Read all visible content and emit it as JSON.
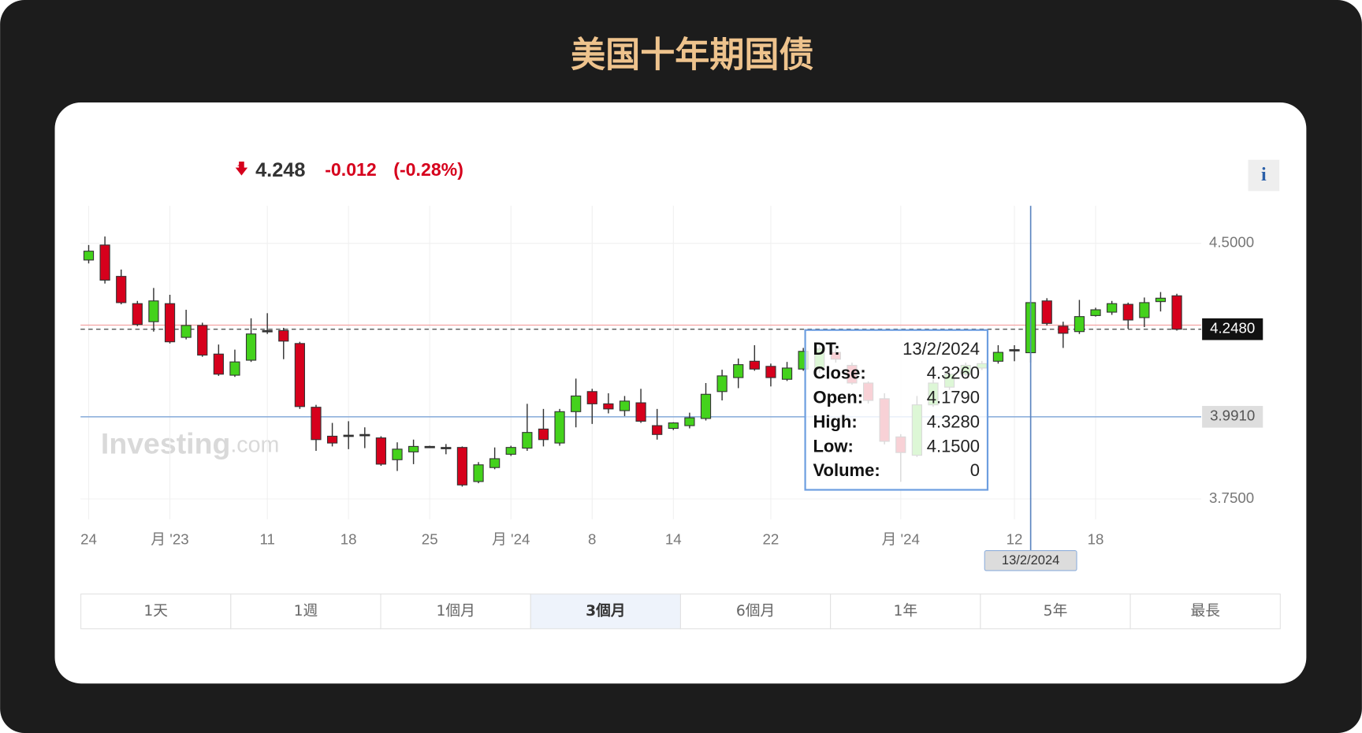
{
  "header": {
    "title": "美国十年期国债"
  },
  "quote": {
    "price": "4.248",
    "change": "-0.012",
    "change_pct": "(-0.28%)"
  },
  "info_icon": "i",
  "watermark": {
    "brand": "Investing",
    "suffix": ".com"
  },
  "chart_data": {
    "type": "candlestick",
    "categories": [
      "24",
      null,
      null,
      null,
      null,
      "月 '23",
      null,
      null,
      null,
      null,
      null,
      "11",
      null,
      null,
      null,
      null,
      "18",
      null,
      null,
      null,
      null,
      "25",
      null,
      null,
      null,
      null,
      "月 '24",
      null,
      null,
      null,
      null,
      "8",
      null,
      null,
      null,
      null,
      "14",
      null,
      null,
      null,
      null,
      null,
      "22",
      null,
      null,
      null,
      null,
      null,
      null,
      null,
      "月 '24",
      null,
      null,
      null,
      null,
      null,
      null,
      "12",
      null,
      null,
      null,
      null,
      "18",
      null,
      null,
      null,
      null,
      null
    ],
    "open": [
      4.451,
      4.495,
      4.403,
      4.323,
      4.27,
      4.323,
      4.224,
      4.259,
      4.175,
      4.113,
      4.157,
      4.244,
      4.244,
      4.206,
      4.019,
      3.934,
      3.937,
      3.939,
      3.929,
      3.865,
      3.888,
      3.904,
      3.901,
      3.901,
      3.801,
      3.842,
      3.881,
      3.899,
      3.955,
      3.914,
      4.006,
      4.065,
      4.029,
      4.009,
      4.032,
      3.965,
      3.957,
      3.965,
      3.986,
      4.065,
      4.106,
      4.154,
      4.139,
      4.101,
      4.131,
      4.131,
      4.18,
      4.142,
      4.09,
      4.044,
      3.932,
      3.878,
      4.026,
      4.078,
      4.116,
      4.134,
      4.154,
      4.188,
      4.179,
      4.331,
      4.257,
      4.241,
      4.288,
      4.298,
      4.321,
      4.282,
      4.329,
      4.346
    ],
    "high": [
      4.495,
      4.52,
      4.423,
      4.331,
      4.369,
      4.349,
      4.305,
      4.267,
      4.203,
      4.188,
      4.28,
      4.295,
      4.252,
      4.211,
      4.026,
      3.973,
      3.978,
      3.96,
      3.934,
      3.916,
      3.924,
      3.906,
      3.911,
      3.904,
      3.858,
      3.901,
      3.906,
      4.029,
      4.014,
      4.014,
      4.103,
      4.073,
      4.06,
      4.052,
      4.073,
      4.014,
      3.975,
      4.003,
      4.09,
      4.129,
      4.162,
      4.201,
      4.147,
      4.152,
      4.193,
      4.2,
      4.19,
      4.15,
      4.095,
      4.06,
      3.94,
      4.052,
      4.1,
      4.125,
      4.15,
      4.155,
      4.201,
      4.201,
      4.328,
      4.339,
      4.27,
      4.334,
      4.311,
      4.331,
      4.326,
      4.341,
      4.357,
      4.352
    ],
    "low": [
      4.441,
      4.382,
      4.321,
      4.257,
      4.241,
      4.206,
      4.218,
      4.167,
      4.111,
      4.108,
      4.152,
      4.234,
      4.16,
      4.014,
      3.891,
      3.904,
      3.896,
      3.899,
      3.847,
      3.832,
      3.852,
      3.901,
      3.881,
      3.786,
      3.796,
      3.837,
      3.876,
      3.891,
      3.904,
      3.906,
      3.96,
      3.97,
      4.001,
      3.993,
      3.973,
      3.924,
      3.952,
      3.957,
      3.98,
      4.039,
      4.075,
      4.126,
      4.08,
      4.096,
      4.126,
      4.12,
      4.15,
      4.085,
      4.03,
      3.91,
      3.8,
      3.873,
      4.02,
      4.07,
      4.11,
      4.128,
      4.147,
      4.154,
      4.15,
      4.259,
      4.193,
      4.234,
      4.285,
      4.29,
      4.249,
      4.254,
      4.3,
      4.244
    ],
    "close": [
      4.477,
      4.392,
      4.326,
      4.262,
      4.331,
      4.211,
      4.259,
      4.172,
      4.116,
      4.152,
      4.234,
      4.244,
      4.213,
      4.021,
      3.924,
      3.914,
      3.937,
      3.939,
      3.852,
      3.896,
      3.904,
      3.904,
      3.901,
      3.791,
      3.85,
      3.868,
      3.901,
      3.945,
      3.924,
      4.006,
      4.052,
      4.029,
      4.014,
      4.037,
      3.978,
      3.939,
      3.973,
      3.988,
      4.057,
      4.111,
      4.144,
      4.131,
      4.106,
      4.134,
      4.183,
      4.19,
      4.16,
      4.09,
      4.039,
      3.919,
      3.886,
      4.026,
      4.09,
      4.116,
      4.142,
      4.147,
      4.18,
      4.188,
      4.326,
      4.265,
      4.236,
      4.285,
      4.305,
      4.323,
      4.275,
      4.326,
      4.339,
      4.248
    ],
    "up_color": "#44d21c",
    "down_color": "#d6001c",
    "ylim": [
      3.69,
      4.61
    ],
    "yticks": [
      {
        "value": 4.5,
        "label": "4.5000"
      },
      {
        "value": 3.75,
        "label": "3.7500"
      }
    ],
    "grid": true,
    "prev_close": 4.26,
    "last_marker": {
      "value": 4.248,
      "label": "4.2480"
    },
    "crosshair": {
      "index": 58,
      "date_label": "13/2/2024",
      "y": 3.991,
      "y_label": "3.9910"
    },
    "tooltip": {
      "rows": [
        {
          "label": "DT:",
          "value": "13/2/2024"
        },
        {
          "label": "Close:",
          "value": "4.3260"
        },
        {
          "label": "Open:",
          "value": "4.1790"
        },
        {
          "label": "High:",
          "value": "4.3280"
        },
        {
          "label": "Low:",
          "value": "4.1500"
        },
        {
          "label": "Volume:",
          "value": "0"
        }
      ]
    }
  },
  "ranges": {
    "items": [
      "1天",
      "1週",
      "1個月",
      "3個月",
      "6個月",
      "1年",
      "5年",
      "最長"
    ],
    "selected": 3
  }
}
